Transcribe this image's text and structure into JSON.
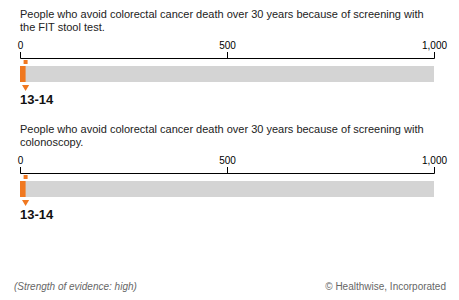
{
  "chart_data": [
    {
      "type": "bar",
      "orientation": "horizontal",
      "title": "People who avoid colorectal cancer death over 30 years because of screening with the FIT stool test.",
      "categories": [
        null
      ],
      "values": [
        13.5
      ],
      "value_labels": [
        "13-14"
      ],
      "data_labels": true,
      "color": "#f07820",
      "xlim": [
        0,
        1000
      ],
      "xticks": [
        0,
        500,
        {
          "value": 1000,
          "label": "1,000"
        }
      ]
    },
    {
      "type": "bar",
      "orientation": "horizontal",
      "title": "People who avoid colorectal cancer death over 30 years because of screening with colonoscopy.",
      "categories": [
        null
      ],
      "values": [
        13.5
      ],
      "value_labels": [
        "13-14"
      ],
      "data_labels": true,
      "color": "#f07820",
      "xlim": [
        0,
        1000
      ],
      "xticks": [
        0,
        500,
        {
          "value": 1000,
          "label": "1,000"
        }
      ],
      "annotations": [
        "(Strength of evidence: high)",
        "© Healthwise, Incorporated"
      ]
    }
  ]
}
